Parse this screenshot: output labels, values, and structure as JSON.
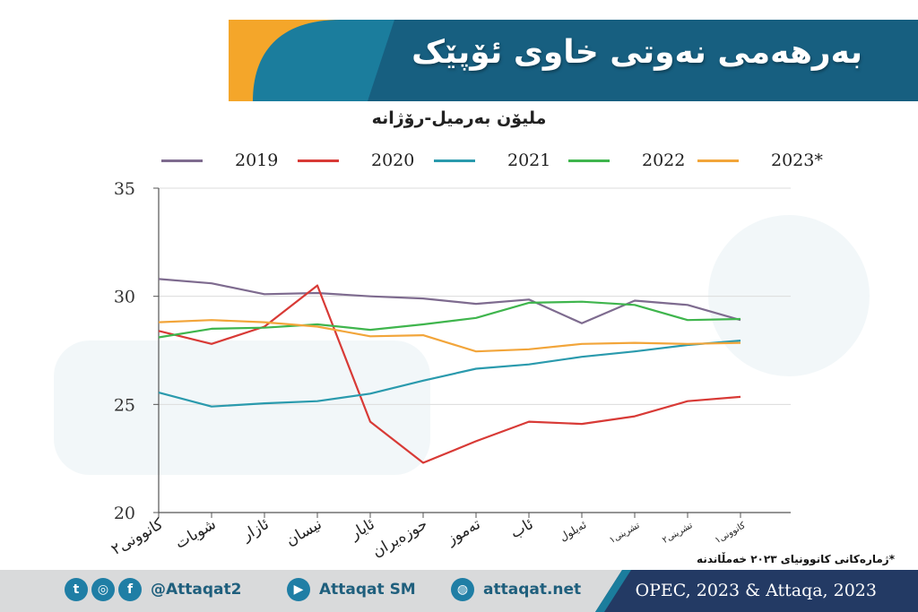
{
  "banner": {
    "title": "بەرهەمی نەوتی خاوی ئۆپێک"
  },
  "colors": {
    "banner_orange": "#f4a62a",
    "banner_teal": "#1b7d9d",
    "footer_navy": "#233a64"
  },
  "chart_data": {
    "type": "line",
    "title": "مليۆن بەرميل-رۆژانە",
    "xlabel": "",
    "ylabel": "",
    "ylim": [
      20,
      35
    ],
    "yticks": [
      20,
      25,
      30,
      35
    ],
    "categories": [
      "كانوونی٢",
      "شوبات",
      "ئازار",
      "نیسان",
      "ئایار",
      "حوزەیران",
      "تەموز",
      "ئاب",
      "ئەیلول",
      "تشرینی١",
      "تشرینی٢",
      "كانوونی١"
    ],
    "grid": "horizontal",
    "legend": "top",
    "series": [
      {
        "name": "2019",
        "color": "#7e6b8f",
        "values": [
          30.8,
          30.6,
          30.1,
          30.15,
          30.0,
          29.9,
          29.65,
          29.85,
          28.75,
          29.8,
          29.6,
          28.9
        ]
      },
      {
        "name": "2020",
        "color": "#d83a36",
        "values": [
          28.4,
          27.8,
          28.6,
          30.5,
          24.2,
          22.3,
          23.3,
          24.2,
          24.1,
          24.45,
          25.15,
          25.35
        ]
      },
      {
        "name": "2021",
        "color": "#2a9aad",
        "values": [
          25.55,
          24.9,
          25.05,
          25.15,
          25.5,
          26.1,
          26.65,
          26.85,
          27.2,
          27.45,
          27.75,
          27.95
        ]
      },
      {
        "name": "2022",
        "color": "#3fb54d",
        "values": [
          28.1,
          28.5,
          28.55,
          28.7,
          28.45,
          28.7,
          29.0,
          29.7,
          29.75,
          29.6,
          28.9,
          28.95
        ]
      },
      {
        "name": "2023*",
        "color": "#f2a53a",
        "values": [
          28.8,
          28.9,
          28.8,
          28.6,
          28.15,
          28.2,
          27.45,
          27.55,
          27.8,
          27.85,
          27.8,
          27.85
        ]
      }
    ]
  },
  "footnote": "*ژمارەكانی كانوونیای ٢٠٢٣ خەمڵاندنە",
  "footer": {
    "social_handle": "@Attaqat2",
    "youtube_name": "Attaqat SM",
    "website": "attaqat.net",
    "source": "OPEC, 2023 & Attaqa, 2023"
  },
  "icons": [
    "twitter-icon",
    "instagram-icon",
    "facebook-icon",
    "youtube-icon",
    "web-icon"
  ]
}
